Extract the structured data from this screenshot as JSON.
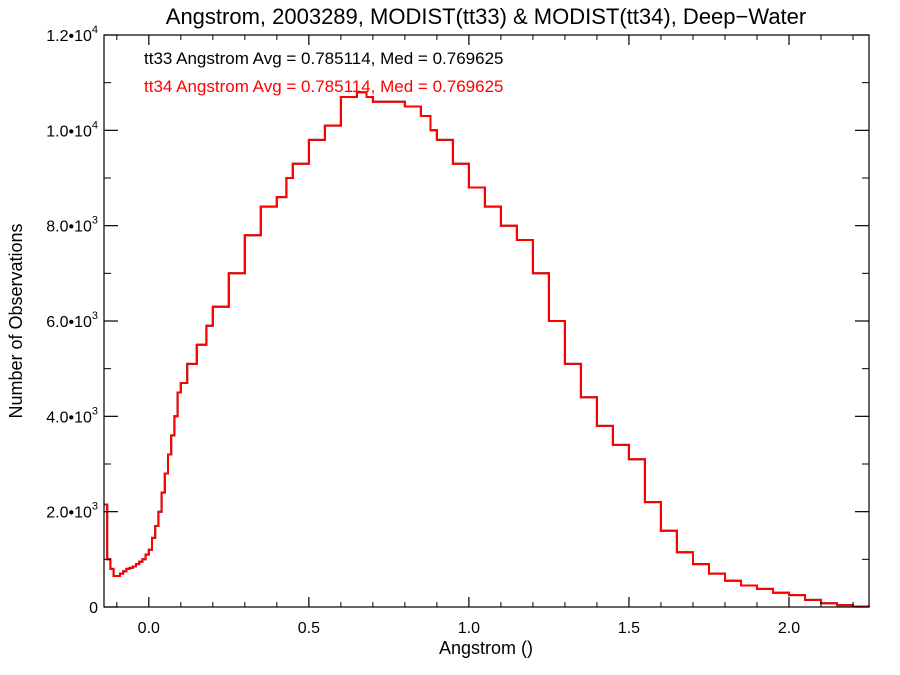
{
  "chart_data": {
    "type": "line",
    "title": "Angstrom, 2003289, MODIST(tt33) & MODIST(tt34), Deep−Water",
    "xlabel": "Angstrom ()",
    "ylabel": "Number of Observations",
    "xlim": [
      -0.14,
      2.25
    ],
    "ylim": [
      0,
      12000
    ],
    "x_ticks": [
      0.0,
      0.5,
      1.0,
      1.5,
      2.0
    ],
    "x_tick_labels": [
      "0.0",
      "0.5",
      "1.0",
      "1.5",
      "2.0"
    ],
    "y_ticks": [
      0,
      2000,
      4000,
      6000,
      8000,
      10000,
      12000
    ],
    "y_tick_labels": [
      {
        "mant": "0",
        "exp": ""
      },
      {
        "mant": "2.0•10",
        "exp": "3"
      },
      {
        "mant": "4.0•10",
        "exp": "3"
      },
      {
        "mant": "6.0•10",
        "exp": "3"
      },
      {
        "mant": "8.0•10",
        "exp": "3"
      },
      {
        "mant": "1.0•10",
        "exp": "4"
      },
      {
        "mant": "1.2•10",
        "exp": "4"
      }
    ],
    "annotations": [
      {
        "text": "tt33 Angstrom Avg = 0.785114, Med = 0.769625",
        "color": "#000000"
      },
      {
        "text": "tt34 Angstrom Avg = 0.785114, Med = 0.769625",
        "color": "#ff0000"
      }
    ],
    "series": [
      {
        "name": "tt33",
        "color": "#000000",
        "x": [
          -0.14,
          -0.13,
          -0.12,
          -0.11,
          -0.1,
          -0.09,
          -0.08,
          -0.07,
          -0.06,
          -0.05,
          -0.04,
          -0.03,
          -0.02,
          -0.01,
          0.0,
          0.01,
          0.02,
          0.03,
          0.04,
          0.05,
          0.06,
          0.07,
          0.08,
          0.09,
          0.1,
          0.12,
          0.15,
          0.18,
          0.2,
          0.25,
          0.3,
          0.35,
          0.4,
          0.43,
          0.45,
          0.5,
          0.55,
          0.6,
          0.62,
          0.65,
          0.68,
          0.7,
          0.75,
          0.8,
          0.85,
          0.88,
          0.9,
          0.95,
          1.0,
          1.05,
          1.1,
          1.15,
          1.2,
          1.25,
          1.3,
          1.35,
          1.4,
          1.45,
          1.5,
          1.55,
          1.6,
          1.65,
          1.7,
          1.75,
          1.8,
          1.85,
          1.9,
          1.95,
          2.0,
          2.05,
          2.1,
          2.15,
          2.2,
          2.25
        ],
        "y": [
          2150,
          1000,
          800,
          650,
          650,
          700,
          750,
          800,
          820,
          850,
          900,
          950,
          1000,
          1100,
          1200,
          1450,
          1700,
          2000,
          2400,
          2800,
          3200,
          3600,
          4000,
          4500,
          4700,
          5100,
          5500,
          5900,
          6300,
          7000,
          7800,
          8400,
          8600,
          9000,
          9300,
          9800,
          10100,
          10700,
          10700,
          10800,
          10700,
          10600,
          10600,
          10500,
          10300,
          10000,
          9800,
          9300,
          8800,
          8400,
          8000,
          7700,
          7000,
          6000,
          5100,
          4400,
          3800,
          3400,
          3100,
          2200,
          1600,
          1150,
          900,
          700,
          550,
          450,
          380,
          300,
          250,
          150,
          80,
          40,
          10,
          0
        ]
      },
      {
        "name": "tt34",
        "color": "#ff0000",
        "x": [
          -0.14,
          -0.13,
          -0.12,
          -0.11,
          -0.1,
          -0.09,
          -0.08,
          -0.07,
          -0.06,
          -0.05,
          -0.04,
          -0.03,
          -0.02,
          -0.01,
          0.0,
          0.01,
          0.02,
          0.03,
          0.04,
          0.05,
          0.06,
          0.07,
          0.08,
          0.09,
          0.1,
          0.12,
          0.15,
          0.18,
          0.2,
          0.25,
          0.3,
          0.35,
          0.4,
          0.43,
          0.45,
          0.5,
          0.55,
          0.6,
          0.62,
          0.65,
          0.68,
          0.7,
          0.75,
          0.8,
          0.85,
          0.88,
          0.9,
          0.95,
          1.0,
          1.05,
          1.1,
          1.15,
          1.2,
          1.25,
          1.3,
          1.35,
          1.4,
          1.45,
          1.5,
          1.55,
          1.6,
          1.65,
          1.7,
          1.75,
          1.8,
          1.85,
          1.9,
          1.95,
          2.0,
          2.05,
          2.1,
          2.15,
          2.2,
          2.25
        ],
        "y": [
          2150,
          1000,
          800,
          650,
          650,
          700,
          750,
          800,
          820,
          850,
          900,
          950,
          1000,
          1100,
          1200,
          1450,
          1700,
          2000,
          2400,
          2800,
          3200,
          3600,
          4000,
          4500,
          4700,
          5100,
          5500,
          5900,
          6300,
          7000,
          7800,
          8400,
          8600,
          9000,
          9300,
          9800,
          10100,
          10700,
          10700,
          10800,
          10700,
          10600,
          10600,
          10500,
          10300,
          10000,
          9800,
          9300,
          8800,
          8400,
          8000,
          7700,
          7000,
          6000,
          5100,
          4400,
          3800,
          3400,
          3100,
          2200,
          1600,
          1150,
          900,
          700,
          550,
          450,
          380,
          300,
          250,
          150,
          80,
          40,
          10,
          0
        ]
      }
    ]
  }
}
